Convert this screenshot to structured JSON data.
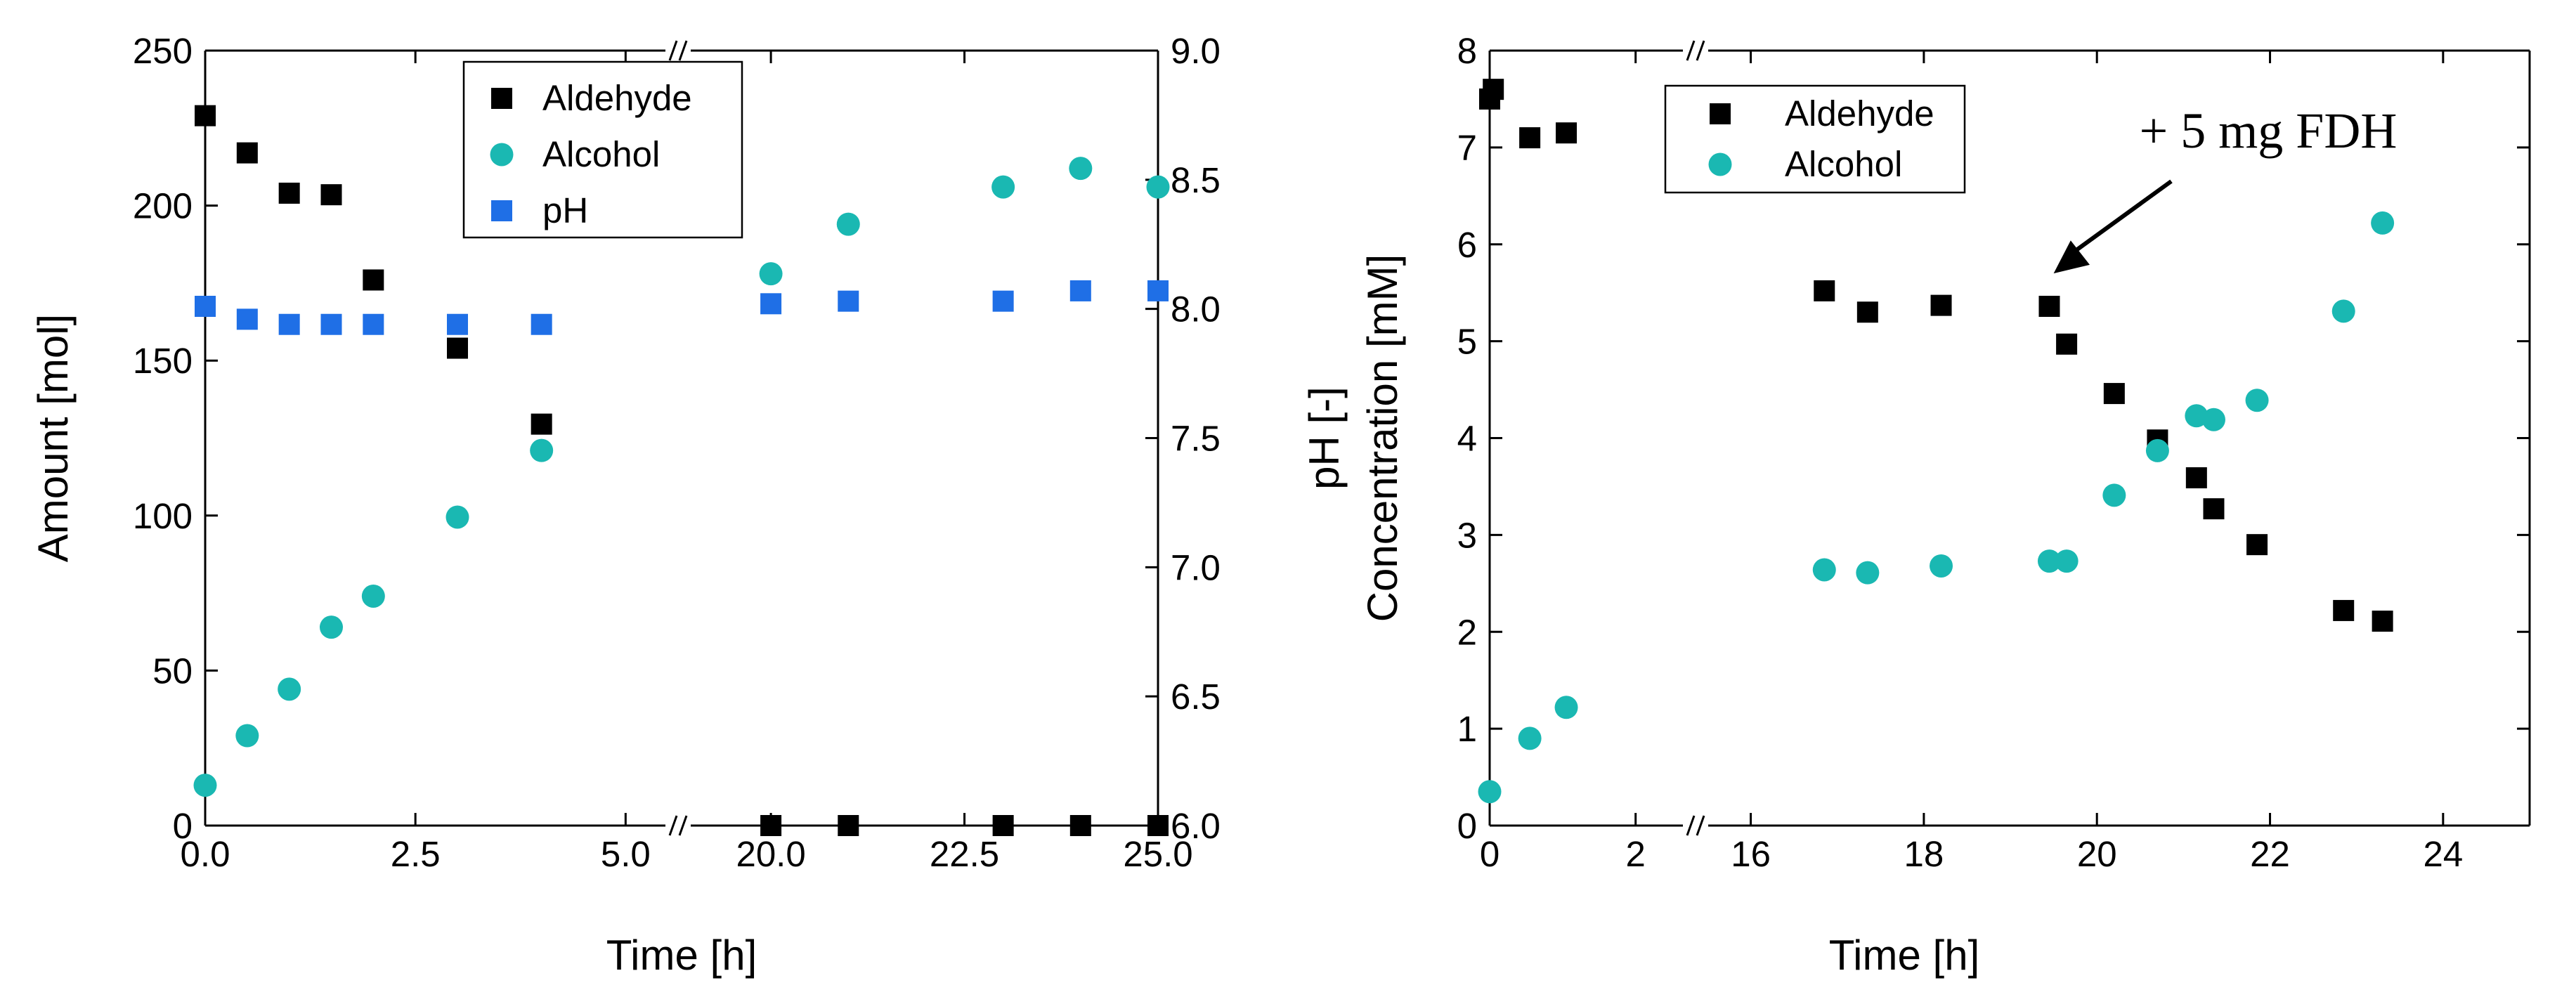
{
  "colors": {
    "aldehyde": "#000000",
    "alcohol": "#1ab8b2",
    "ph": "#1f6fe6",
    "axis": "#000000"
  },
  "chart_data": [
    {
      "type": "scatter",
      "title": "",
      "xlabel": "Time [h]",
      "ylabel": "Amount [mol]",
      "y2label": "pH [-]",
      "x_segments": [
        [
          0,
          6
        ],
        [
          19.5,
          25
        ]
      ],
      "xticks": [
        {
          "value": 0,
          "label": "0.0"
        },
        {
          "value": 2.5,
          "label": "2.5"
        },
        {
          "value": 5,
          "label": "5.0"
        },
        {
          "value": 20,
          "label": "20.0"
        },
        {
          "value": 22.5,
          "label": "22.5"
        },
        {
          "value": 25,
          "label": "25.0"
        }
      ],
      "ylim": [
        0,
        250
      ],
      "yticks": [
        0,
        50,
        100,
        150,
        200,
        250
      ],
      "ytick_labels": [
        "0",
        "50",
        "100",
        "150",
        "200",
        "250"
      ],
      "y2lim": [
        6.0,
        9.0
      ],
      "y2ticks": [
        6.0,
        6.5,
        7.0,
        7.5,
        8.0,
        8.5,
        9.0
      ],
      "y2tick_labels": [
        "6.0",
        "6.5",
        "7.0",
        "7.5",
        "8.0",
        "8.5",
        "9.0"
      ],
      "legend_position": "top-center",
      "series": [
        {
          "name": "Aldehyde",
          "marker": "square",
          "axis": "left",
          "points": [
            [
              0,
              229
            ],
            [
              0.5,
              217
            ],
            [
              1,
              204
            ],
            [
              1.5,
              203.5
            ],
            [
              2,
              176
            ],
            [
              3,
              154
            ],
            [
              4,
              129.5
            ],
            [
              20,
              0
            ],
            [
              21,
              0
            ],
            [
              23,
              0
            ],
            [
              24,
              0
            ],
            [
              25,
              0
            ]
          ]
        },
        {
          "name": "Alcohol",
          "marker": "circle",
          "axis": "left",
          "points": [
            [
              0,
              13
            ],
            [
              0.5,
              29
            ],
            [
              1,
              44
            ],
            [
              1.5,
              64
            ],
            [
              2,
              74
            ],
            [
              3,
              99.5
            ],
            [
              4,
              121
            ],
            [
              20,
              178
            ],
            [
              21,
              194
            ],
            [
              23,
              206
            ],
            [
              24,
              212
            ],
            [
              25,
              206
            ]
          ]
        },
        {
          "name": "pH",
          "marker": "square",
          "axis": "right",
          "points": [
            [
              0,
              8.01
            ],
            [
              0.5,
              7.96
            ],
            [
              1,
              7.94
            ],
            [
              1.5,
              7.94
            ],
            [
              2,
              7.94
            ],
            [
              3,
              7.94
            ],
            [
              4,
              7.94
            ],
            [
              20,
              8.02
            ],
            [
              21,
              8.03
            ],
            [
              23,
              8.03
            ],
            [
              24,
              8.07
            ],
            [
              25,
              8.07
            ]
          ]
        }
      ]
    },
    {
      "type": "scatter",
      "title": "",
      "xlabel": "Time [h]",
      "ylabel": "Concentration [mM]",
      "x_segments": [
        [
          0,
          2.6
        ],
        [
          15.5,
          25
        ]
      ],
      "xticks": [
        {
          "value": 0,
          "label": "0"
        },
        {
          "value": 2,
          "label": "2"
        },
        {
          "value": 16,
          "label": "16"
        },
        {
          "value": 18,
          "label": "18"
        },
        {
          "value": 20,
          "label": "20"
        },
        {
          "value": 22,
          "label": "22"
        },
        {
          "value": 24,
          "label": "24"
        }
      ],
      "ylim": [
        0,
        8
      ],
      "yticks": [
        0,
        1,
        2,
        3,
        4,
        5,
        6,
        7,
        8
      ],
      "ytick_labels": [
        "0",
        "1",
        "2",
        "3",
        "4",
        "5",
        "6",
        "7",
        "8"
      ],
      "legend_position": "top-left",
      "annotation": {
        "text": "+ 5 mg FDH",
        "x": 19.5,
        "y": 5.7
      },
      "series": [
        {
          "name": "Aldehyde",
          "marker": "square",
          "points": [
            [
              0,
              7.5
            ],
            [
              0.05,
              7.6
            ],
            [
              0.55,
              7.1
            ],
            [
              1.05,
              7.15
            ],
            [
              16.85,
              5.52
            ],
            [
              17.35,
              5.3
            ],
            [
              18.2,
              5.37
            ],
            [
              19.45,
              5.36
            ],
            [
              19.65,
              4.97
            ],
            [
              20.2,
              4.46
            ],
            [
              20.7,
              3.98
            ],
            [
              21.15,
              3.59
            ],
            [
              21.35,
              3.27
            ],
            [
              21.85,
              2.9
            ],
            [
              22.85,
              2.22
            ],
            [
              23.3,
              2.11
            ]
          ]
        },
        {
          "name": "Alcohol",
          "marker": "circle",
          "points": [
            [
              0,
              0.35
            ],
            [
              0.55,
              0.9
            ],
            [
              1.05,
              1.22
            ],
            [
              16.85,
              2.64
            ],
            [
              17.35,
              2.61
            ],
            [
              18.2,
              2.68
            ],
            [
              19.45,
              2.73
            ],
            [
              19.65,
              2.73
            ],
            [
              20.2,
              3.41
            ],
            [
              20.7,
              3.87
            ],
            [
              21.15,
              4.23
            ],
            [
              21.35,
              4.19
            ],
            [
              21.85,
              4.39
            ],
            [
              22.85,
              5.31
            ],
            [
              23.3,
              6.22
            ]
          ]
        }
      ]
    }
  ]
}
